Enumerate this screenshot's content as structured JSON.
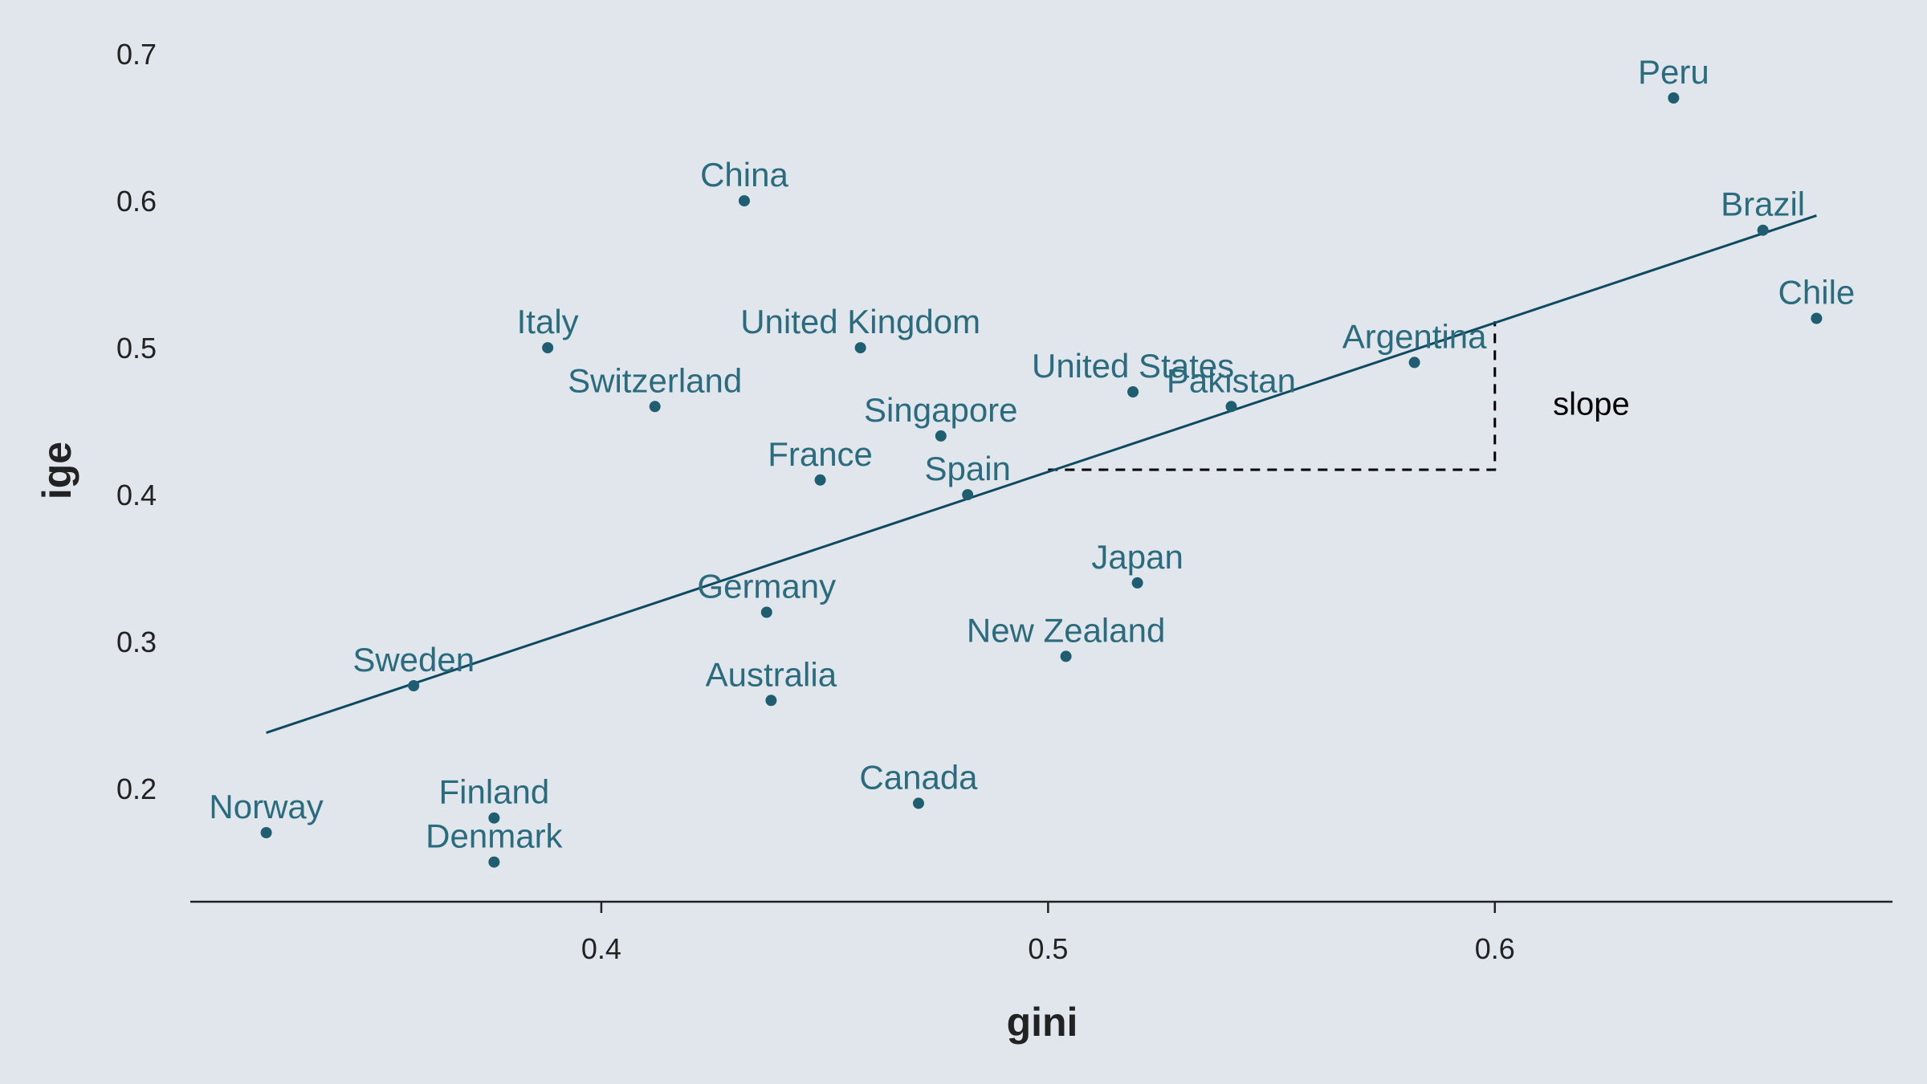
{
  "chart_data": {
    "type": "scatter",
    "title": "",
    "xlabel": "gini",
    "ylabel": "ige",
    "xlim": [
      0.308,
      0.689
    ],
    "ylim": [
      0.123,
      0.723
    ],
    "x_ticks": [
      0.4,
      0.5,
      0.6
    ],
    "x_tick_labels": [
      "0.4",
      "0.5",
      "0.6"
    ],
    "y_ticks": [
      0.2,
      0.3,
      0.4,
      0.5,
      0.6,
      0.7
    ],
    "y_tick_labels": [
      "0.2",
      "0.3",
      "0.4",
      "0.5",
      "0.6",
      "0.7"
    ],
    "grid": false,
    "points": [
      {
        "label": "Norway",
        "x": 0.325,
        "y": 0.17
      },
      {
        "label": "Denmark",
        "x": 0.376,
        "y": 0.15
      },
      {
        "label": "Finland",
        "x": 0.376,
        "y": 0.18
      },
      {
        "label": "Sweden",
        "x": 0.358,
        "y": 0.27
      },
      {
        "label": "Italy",
        "x": 0.388,
        "y": 0.5
      },
      {
        "label": "Switzerland",
        "x": 0.412,
        "y": 0.46
      },
      {
        "label": "China",
        "x": 0.432,
        "y": 0.6
      },
      {
        "label": "Germany",
        "x": 0.437,
        "y": 0.32
      },
      {
        "label": "Australia",
        "x": 0.438,
        "y": 0.26
      },
      {
        "label": "France",
        "x": 0.449,
        "y": 0.41
      },
      {
        "label": "United Kingdom",
        "x": 0.458,
        "y": 0.5
      },
      {
        "label": "Canada",
        "x": 0.471,
        "y": 0.19
      },
      {
        "label": "Singapore",
        "x": 0.476,
        "y": 0.44
      },
      {
        "label": "Spain",
        "x": 0.482,
        "y": 0.4
      },
      {
        "label": "New Zealand",
        "x": 0.504,
        "y": 0.29
      },
      {
        "label": "United States",
        "x": 0.519,
        "y": 0.47
      },
      {
        "label": "Japan",
        "x": 0.52,
        "y": 0.34
      },
      {
        "label": "Pakistan",
        "x": 0.541,
        "y": 0.46
      },
      {
        "label": "Argentina",
        "x": 0.582,
        "y": 0.49
      },
      {
        "label": "Peru",
        "x": 0.64,
        "y": 0.67
      },
      {
        "label": "Brazil",
        "x": 0.66,
        "y": 0.58
      },
      {
        "label": "Chile",
        "x": 0.672,
        "y": 0.52
      }
    ],
    "fit_line": {
      "x": [
        0.325,
        0.672
      ],
      "y": [
        0.238,
        0.59
      ]
    },
    "slope_triangle": {
      "x0": 0.5,
      "x1": 0.6,
      "y0": 0.417,
      "y1": 0.518
    },
    "annotations": [
      {
        "text": "slope",
        "x": 0.613,
        "y": 0.462
      }
    ],
    "colors": {
      "background": "#e0e6ec",
      "points": "#1f5e70",
      "labels": "#2b6b7e",
      "fit_line": "#0e4a61",
      "axis": "#222222",
      "triangle": "#000000"
    }
  }
}
